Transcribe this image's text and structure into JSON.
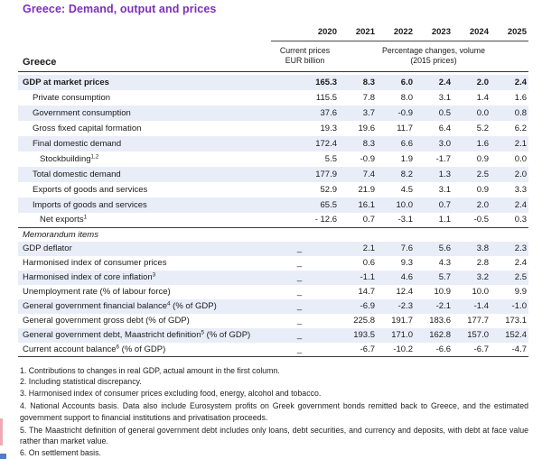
{
  "title": "Greece: Demand, output and prices",
  "colors": {
    "title_purple": "#7D2EBE",
    "row_shade": "#E8EDF8"
  },
  "table": {
    "region_label": "Greece",
    "years": [
      "2020",
      "2021",
      "2022",
      "2023",
      "2024",
      "2025"
    ],
    "unit_col2020": [
      "Current prices",
      "EUR billion"
    ],
    "unit_volume": [
      "Percentage changes, volume",
      "(2015 prices)"
    ],
    "rows": [
      {
        "pre": "GDP at market prices",
        "indent": 0,
        "bold": true,
        "values": [
          "165.3",
          "8.3",
          "6.0",
          "2.4",
          "2.0",
          "2.4"
        ]
      },
      {
        "pre": "Private consumption",
        "indent": 1,
        "values": [
          "115.5",
          "7.8",
          "8.0",
          "3.1",
          "1.4",
          "1.6"
        ]
      },
      {
        "pre": "Government consumption",
        "indent": 1,
        "values": [
          "37.6",
          "3.7",
          "-0.9",
          "0.5",
          "0.0",
          "0.8"
        ]
      },
      {
        "pre": "Gross fixed capital formation",
        "indent": 1,
        "values": [
          "19.3",
          "19.6",
          "11.7",
          "6.4",
          "5.2",
          "6.2"
        ]
      },
      {
        "pre": "Final domestic demand",
        "indent": 1,
        "values": [
          "172.4",
          "8.3",
          "6.6",
          "3.0",
          "1.6",
          "2.1"
        ]
      },
      {
        "pre": "Stockbuilding",
        "sup": "1,2",
        "indent": 2,
        "values": [
          "5.5",
          "-0.9",
          "1.9",
          "-1.7",
          "0.9",
          "0.0"
        ]
      },
      {
        "pre": "Total domestic demand",
        "indent": 1,
        "values": [
          "177.9",
          "7.4",
          "8.2",
          "1.3",
          "2.5",
          "2.0"
        ]
      },
      {
        "pre": "Exports of goods and services",
        "indent": 1,
        "values": [
          "52.9",
          "21.9",
          "4.5",
          "3.1",
          "0.9",
          "3.3"
        ]
      },
      {
        "pre": "Imports of goods and services",
        "indent": 1,
        "values": [
          "65.5",
          "16.1",
          "10.0",
          "0.7",
          "2.0",
          "2.4"
        ]
      },
      {
        "pre": "Net exports",
        "sup": "1",
        "indent": 2,
        "values": [
          "- 12.6",
          "0.7",
          "-3.1",
          "1.1",
          "-0.5",
          "0.3"
        ]
      }
    ],
    "memo_label": "Memorandum items",
    "memo_rows": [
      {
        "pre": "GDP deflator",
        "indent": 0,
        "values": [
          "_",
          "2.1",
          "7.6",
          "5.6",
          "3.8",
          "2.3"
        ]
      },
      {
        "pre": "Harmonised index of consumer prices",
        "indent": 0,
        "values": [
          "_",
          "0.6",
          "9.3",
          "4.3",
          "2.8",
          "2.4"
        ]
      },
      {
        "pre": "Harmonised index of core inflation",
        "sup": "3",
        "indent": 0,
        "values": [
          "_",
          "-1.1",
          "4.6",
          "5.7",
          "3.2",
          "2.5"
        ]
      },
      {
        "pre": "Unemployment rate (% of labour force)",
        "indent": 0,
        "values": [
          "_",
          "14.7",
          "12.4",
          "10.9",
          "10.0",
          "9.9"
        ]
      },
      {
        "pre": "General government financial balance",
        "sup": "4",
        "post": " (% of GDP)",
        "indent": 0,
        "values": [
          "_",
          "-6.9",
          "-2.3",
          "-2.1",
          "-1.4",
          "-1.0"
        ]
      },
      {
        "pre": "General government gross debt (% of GDP)",
        "indent": 0,
        "values": [
          "_",
          "225.8",
          "191.7",
          "183.6",
          "177.7",
          "173.1"
        ]
      },
      {
        "pre": "General government debt, Maastricht definition",
        "sup": "5",
        "post": " (% of GDP)",
        "indent": 0,
        "values": [
          "_",
          "193.5",
          "171.0",
          "162.8",
          "157.0",
          "152.4"
        ]
      },
      {
        "pre": "Current account balance",
        "sup": "6",
        "post": " (% of GDP)",
        "indent": 0,
        "values": [
          "_",
          "-6.7",
          "-10.2",
          "-6.6",
          "-6.7",
          "-4.7"
        ]
      }
    ]
  },
  "footnotes": [
    "1. Contributions to changes in real GDP, actual amount in the first column.",
    "2. Including statistical discrepancy.",
    "3. Harmonised index of consumer prices excluding food, energy, alcohol and tobacco.",
    "4. National Accounts basis. Data also include Eurosystem profits on Greek government bonds remitted back to Greece, and the estimated government support to financial institutions and privatisation proceeds.",
    "5. The Maastricht definition of general government debt includes only loans, debt securities, and currency and deposits, with debt at face value rather than market value.",
    "6. On settlement basis."
  ]
}
